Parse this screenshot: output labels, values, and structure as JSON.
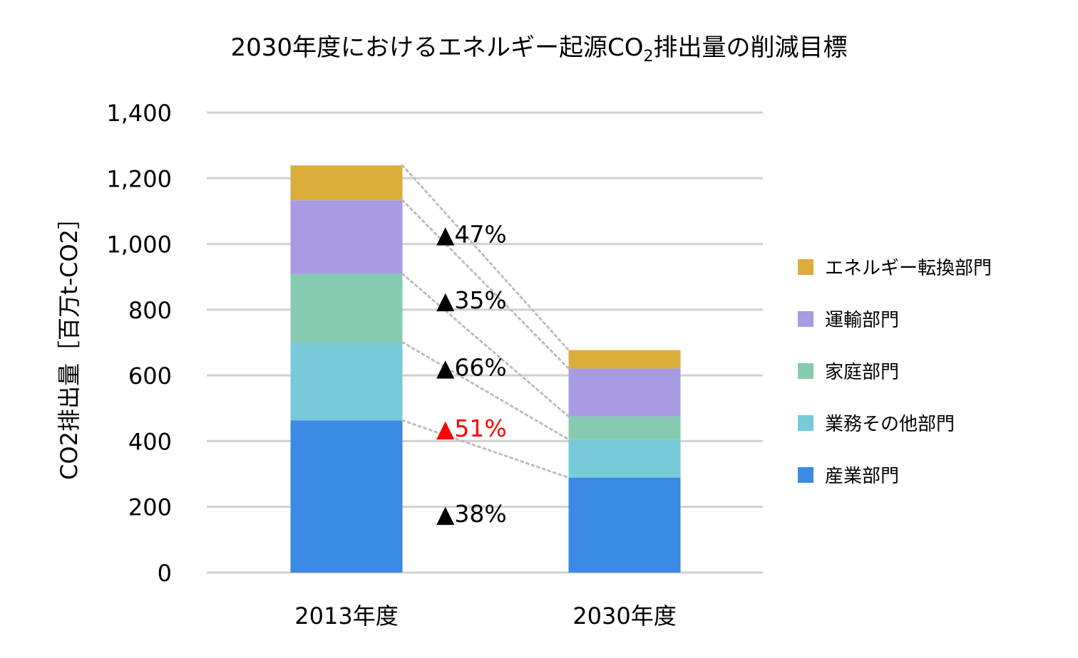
{
  "chart_data": {
    "type": "bar",
    "stacked": true,
    "title_main": "2030年度におけるエネルギー起源CO",
    "title_sub": "2",
    "title_end": "排出量の削減目標",
    "ylabel": "CO2排出量［百万t-CO2］",
    "ylim": [
      0,
      1400
    ],
    "yticks": [
      "0",
      "200",
      "400",
      "600",
      "800",
      "1,000",
      "1,200",
      "1,400"
    ],
    "grid": true,
    "legend_position": "right",
    "categories": [
      "2013年度",
      "2030年度"
    ],
    "series": [
      {
        "name": "産業部門",
        "color": "#3b8ae4",
        "values": [
          463,
          289
        ]
      },
      {
        "name": "業務その他部門",
        "color": "#77cad8",
        "values": [
          238,
          116
        ]
      },
      {
        "name": "家庭部門",
        "color": "#86cbaf",
        "values": [
          208,
          70
        ]
      },
      {
        "name": "運輸部門",
        "color": "#a89ae3",
        "values": [
          224,
          146
        ]
      },
      {
        "name": "エネルギー転換部門",
        "color": "#dbad3a",
        "values": [
          106,
          56
        ]
      }
    ],
    "annotations": [
      {
        "text": "▲38%",
        "color": "#000000",
        "at_value": 180
      },
      {
        "text": "▲51%",
        "color": "#ff0000",
        "at_value": 440
      },
      {
        "text": "▲66%",
        "color": "#000000",
        "at_value": 625
      },
      {
        "text": "▲35%",
        "color": "#000000",
        "at_value": 830
      },
      {
        "text": "▲47%",
        "color": "#000000",
        "at_value": 1030
      }
    ]
  }
}
